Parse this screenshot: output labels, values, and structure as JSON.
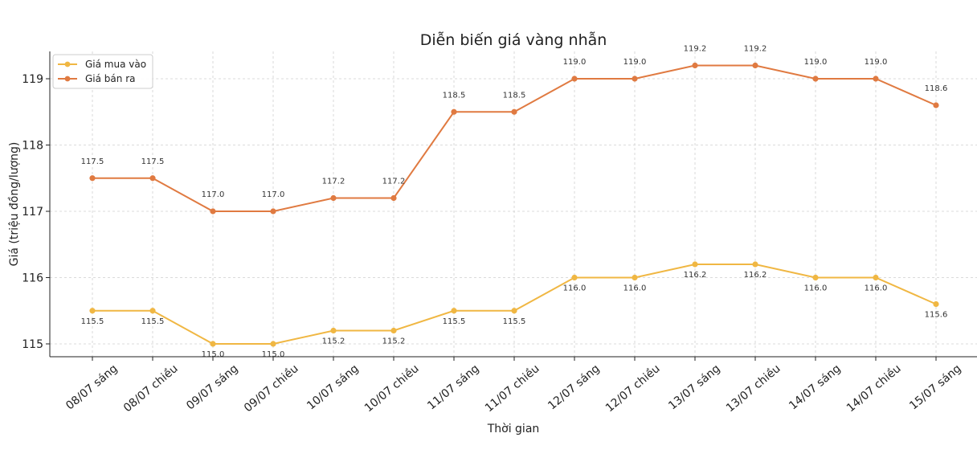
{
  "chart_data": {
    "type": "line",
    "title": "Diễn biến giá vàng nhẫn",
    "xlabel": "Thời gian",
    "ylabel": "Giá (triệu đồng/lượng)",
    "categories": [
      "08/07 sáng",
      "08/07 chiều",
      "09/07 sáng",
      "09/07 chiều",
      "10/07 sáng",
      "10/07 chiều",
      "11/07 sáng",
      "11/07 chiều",
      "12/07 sáng",
      "12/07 chiều",
      "13/07 sáng",
      "13/07 chiều",
      "14/07 sáng",
      "14/07 chiều",
      "15/07 sáng"
    ],
    "series": [
      {
        "name": "Giá mua vào",
        "color": "#f0b743",
        "values": [
          115.5,
          115.5,
          115.0,
          115.0,
          115.2,
          115.2,
          115.5,
          115.5,
          116.0,
          116.0,
          116.2,
          116.2,
          116.0,
          116.0,
          115.6
        ],
        "label_position": "below"
      },
      {
        "name": "Giá bán ra",
        "color": "#e07a41",
        "values": [
          117.5,
          117.5,
          117.0,
          117.0,
          117.2,
          117.2,
          118.5,
          118.5,
          119.0,
          119.0,
          119.2,
          119.2,
          119.0,
          119.0,
          118.6
        ],
        "label_position": "above"
      }
    ],
    "yticks": [
      115,
      116,
      117,
      118,
      119
    ],
    "ylim": [
      114.8,
      119.4
    ],
    "grid": true,
    "legend": "top-left"
  }
}
